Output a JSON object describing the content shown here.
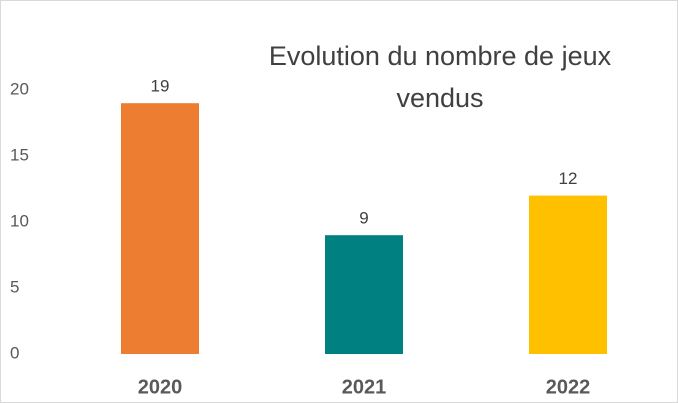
{
  "chart_data": {
    "type": "bar",
    "title": "Evolution du nombre de jeux vendus",
    "categories": [
      "2020",
      "2021",
      "2022"
    ],
    "values": [
      19,
      9,
      12
    ],
    "colors": [
      "#ED7D31",
      "#008080",
      "#FFC000"
    ],
    "ylim": [
      0,
      20
    ],
    "yticks": [
      0,
      5,
      10,
      15,
      20
    ],
    "grid": false
  }
}
